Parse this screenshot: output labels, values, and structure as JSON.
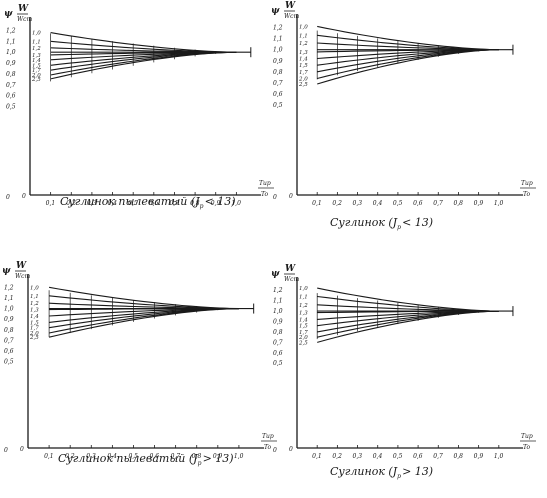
{
  "chart_data": [
    {
      "type": "line",
      "caption": "Суглинок пылеватый (J",
      "caption_sub": "p",
      "caption_rel": "< 13)",
      "y_symbol": "ψ",
      "w_label": "W",
      "w_sub": "Wст",
      "x_label_num": "Tир",
      "x_label_den": "To",
      "x_ticks": [
        "0,1",
        "0,2",
        "0,3",
        "0,4",
        "0,5",
        "0,6",
        "0,7",
        "0,8",
        "0,9",
        "1,0"
      ],
      "psi_ticks": [
        "1,2",
        "1,1",
        "1,0",
        "0,9",
        "0,8",
        "0,7",
        "0,6",
        "0,5",
        "0"
      ],
      "curve_labels": [
        "1,0",
        "1,1",
        "1,2",
        "1,3",
        "1,4",
        "1,5",
        "1,7",
        "2,0",
        "2,5"
      ],
      "series_start": [
        1.18,
        1.1,
        1.04,
        0.975,
        0.93,
        0.88,
        0.835,
        0.79,
        0.755
      ],
      "converge": {
        "x": 1.0,
        "psi": 1.0
      },
      "xlim": [
        0,
        1.1
      ],
      "ylim": [
        0,
        1.25
      ]
    },
    {
      "type": "line",
      "caption": "Суглинок (J",
      "caption_sub": "p",
      "caption_rel": "< 13)",
      "y_symbol": "ψ",
      "w_label": "W",
      "w_sub": "Wст",
      "x_label_num": "Tир",
      "x_label_den": "To",
      "x_ticks": [
        "0,1",
        "0,2",
        "0,3",
        "0,4",
        "0,5",
        "0,6",
        "0,7",
        "0,8",
        "0,9",
        "1,0"
      ],
      "psi_ticks": [
        "1,2",
        "1,1",
        "1,0",
        "0,9",
        "0,8",
        "0,7",
        "0,6",
        "0,5",
        "0"
      ],
      "curve_labels": [
        "1,0",
        "1,1",
        "1,2",
        "1,3",
        "1,4",
        "1,5",
        "1,7",
        "2,0",
        "2,5"
      ],
      "series_start": [
        1.21,
        1.13,
        1.06,
        0.98,
        0.92,
        0.86,
        0.8,
        0.74,
        0.69
      ],
      "converge": {
        "x": 1.0,
        "psi": 1.0
      },
      "xlim": [
        0,
        1.1
      ],
      "ylim": [
        0,
        1.25
      ]
    },
    {
      "type": "line",
      "caption": "Суглинок пылеватый (J",
      "caption_sub": "p",
      "caption_rel": "> 13)",
      "y_symbol": "ψ",
      "w_label": "W",
      "w_sub": "Wст",
      "x_label_num": "Tир",
      "x_label_den": "To",
      "x_ticks": [
        "0,1",
        "0,2",
        "0,3",
        "0,4",
        "0,5",
        "0,6",
        "0,7",
        "0,8",
        "0,9",
        "1,0"
      ],
      "psi_ticks": [
        "1,2",
        "1,1",
        "1,0",
        "0,9",
        "0,8",
        "0,7",
        "0,6",
        "0,5",
        "0"
      ],
      "curve_labels": [
        "1,0",
        "1,1",
        "1,2",
        "1,3",
        "1,4",
        "1,5",
        "1,7",
        "2,0",
        "2,5"
      ],
      "series_start": [
        1.2,
        1.12,
        1.05,
        0.99,
        0.93,
        0.87,
        0.82,
        0.77,
        0.73
      ],
      "converge": {
        "x": 1.0,
        "psi": 1.0
      },
      "xlim": [
        0,
        1.1
      ],
      "ylim": [
        0,
        1.25
      ]
    },
    {
      "type": "line",
      "caption": "Суглинок (J",
      "caption_sub": "p",
      "caption_rel": "> 13)",
      "y_symbol": "ψ",
      "w_label": "W",
      "w_sub": "Wст",
      "x_label_num": "Tир",
      "x_label_den": "To",
      "x_ticks": [
        "0,1",
        "0,2",
        "0,3",
        "0,4",
        "0,5",
        "0,6",
        "0,7",
        "0,8",
        "0,9",
        "1,0"
      ],
      "psi_ticks": [
        "1,2",
        "1,1",
        "1,0",
        "0,9",
        "0,8",
        "0,7",
        "0,6",
        "0,5",
        "0"
      ],
      "curve_labels": [
        "1,0",
        "1,1",
        "1,2",
        "1,3",
        "1,4",
        "1,5",
        "1,7",
        "2,0",
        "2,5"
      ],
      "series_start": [
        1.22,
        1.14,
        1.06,
        0.985,
        0.92,
        0.86,
        0.8,
        0.75,
        0.7
      ],
      "converge": {
        "x": 1.0,
        "psi": 1.0
      },
      "xlim": [
        0,
        1.1
      ],
      "ylim": [
        0,
        1.25
      ]
    }
  ]
}
